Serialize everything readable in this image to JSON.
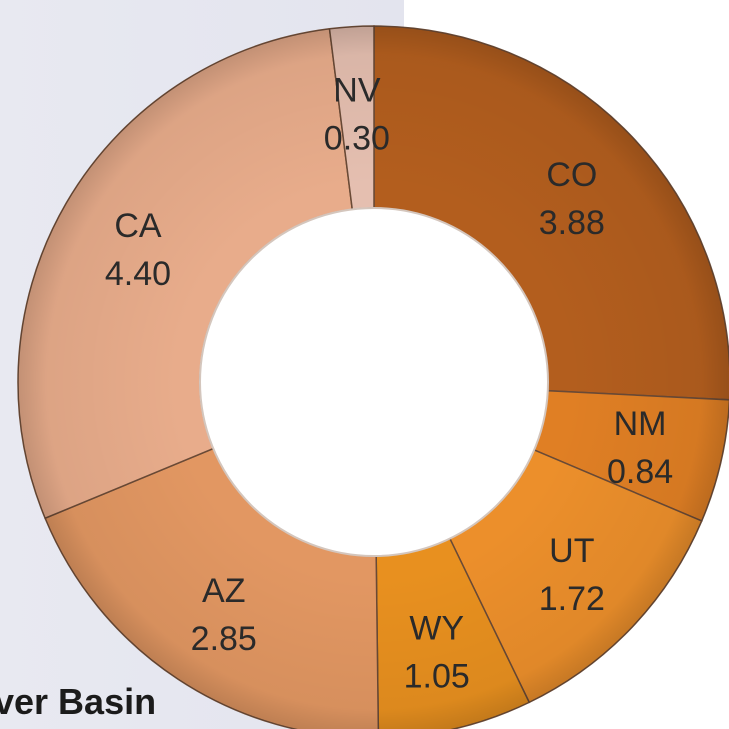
{
  "chart_data": {
    "type": "donut",
    "title": "",
    "slices": [
      {
        "label": "CO",
        "value_label": "3.88",
        "value": 3.88,
        "color": "#b35e1e"
      },
      {
        "label": "NM",
        "value_label": "0.84",
        "value": 0.84,
        "color": "#e07f24"
      },
      {
        "label": "UT",
        "value_label": "1.72",
        "value": 1.72,
        "color": "#ec8f2b"
      },
      {
        "label": "WY",
        "value_label": "1.05",
        "value": 1.05,
        "color": "#e8901f"
      },
      {
        "label": "AZ",
        "value_label": "2.85",
        "value": 2.85,
        "color": "#e29762"
      },
      {
        "label": "CA",
        "value_label": "4.40",
        "value": 4.4,
        "color": "#e8ac8b"
      },
      {
        "label": "NV",
        "value_label": "0.30",
        "value": 0.3,
        "color": "#e5bfb0"
      }
    ],
    "legend": "none"
  },
  "caption": "ver Basin"
}
